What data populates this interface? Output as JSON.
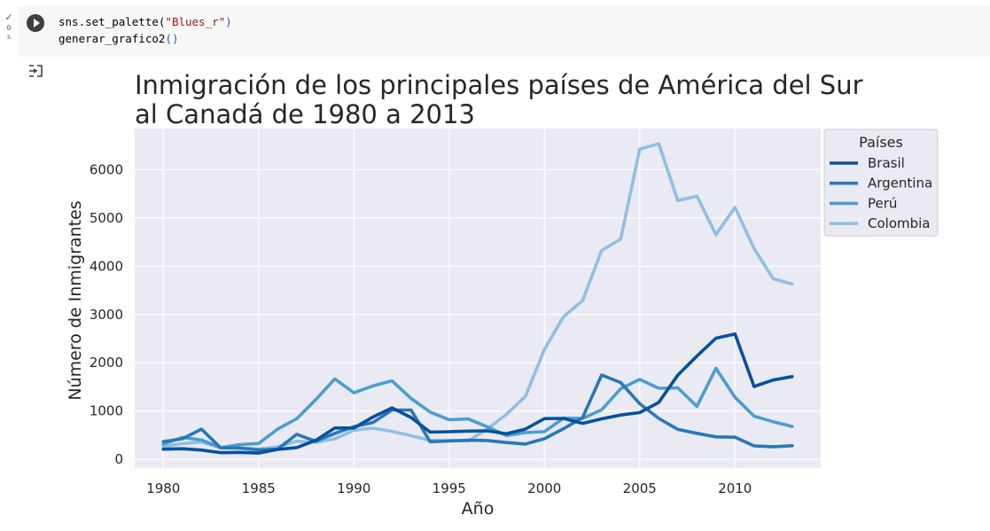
{
  "cell": {
    "status_check": "✓",
    "status_time": "0 s",
    "code_line1_prefix": "sns.set_palette(",
    "code_line1_string": "\"Blues_r\"",
    "code_line1_suffix": ")",
    "code_line2_prefix": "generar_grafico2",
    "code_line2_parens": "()"
  },
  "chart_data": {
    "type": "line",
    "title_line1": "Inmigración de los principales países de América del Sur",
    "title_line2": "al Canadá de 1980 a 2013",
    "xlabel": "Año",
    "ylabel": "Número de Inmigrantes",
    "xlim": [
      1978.5,
      2014.5
    ],
    "ylim": [
      -180,
      6850
    ],
    "xticks": [
      1980,
      1985,
      1990,
      1995,
      2000,
      2005,
      2010
    ],
    "yticks": [
      0,
      1000,
      2000,
      3000,
      4000,
      5000,
      6000
    ],
    "grid": true,
    "legend_title": "Países",
    "legend_position": "outside-upper-right",
    "x": [
      1980,
      1981,
      1982,
      1983,
      1984,
      1985,
      1986,
      1987,
      1988,
      1989,
      1990,
      1991,
      1992,
      1993,
      1994,
      1995,
      1996,
      1997,
      1998,
      1999,
      2000,
      2001,
      2002,
      2003,
      2004,
      2005,
      2006,
      2007,
      2008,
      2009,
      2010,
      2011,
      2012,
      2013
    ],
    "series": [
      {
        "name": "Brasil",
        "color": "#08519c",
        "values": [
          211,
          220,
          192,
          139,
          145,
          130,
          205,
          244,
          394,
          650,
          650,
          877,
          1066,
          866,
          566,
          572,
          586,
          591,
          531,
          626,
          845,
          847,
          745,
          839,
          917,
          969,
          1181,
          1746,
          2138,
          2509,
          2598,
          1508,
          1642,
          1714
        ]
      },
      {
        "name": "Argentina",
        "color": "#2878b8",
        "values": [
          368,
          426,
          626,
          241,
          237,
          196,
          213,
          519,
          374,
          538,
          678,
          763,
          1023,
          1022,
          366,
          380,
          396,
          391,
          349,
          318,
          427,
          635,
          865,
          1745,
          1591,
          1153,
          847,
          620,
          540,
          467,
          459,
          278,
          263,
          282
        ]
      },
      {
        "name": "Perú",
        "color": "#4d9dd0",
        "values": [
          317,
          456,
          401,
          241,
          306,
          328,
          628,
          843,
          1237,
          1667,
          1379,
          1522,
          1627,
          1260,
          980,
          821,
          837,
          675,
          491,
          554,
          575,
          852,
          848,
          1026,
          1462,
          1655,
          1472,
          1481,
          1097,
          1885,
          1285,
          893,
          780,
          680
        ]
      },
      {
        "name": "Colombia",
        "color": "#8ec0e0",
        "values": [
          266,
          326,
          360,
          244,
          235,
          214,
          257,
          376,
          353,
          425,
          605,
          646,
          580,
          490,
          393,
          398,
          382,
          630,
          931,
          1305,
          2276,
          2955,
          3287,
          4326,
          4560,
          6424,
          6535,
          5357,
          5452,
          4652,
          5218,
          4366,
          3741,
          3631
        ]
      }
    ]
  }
}
